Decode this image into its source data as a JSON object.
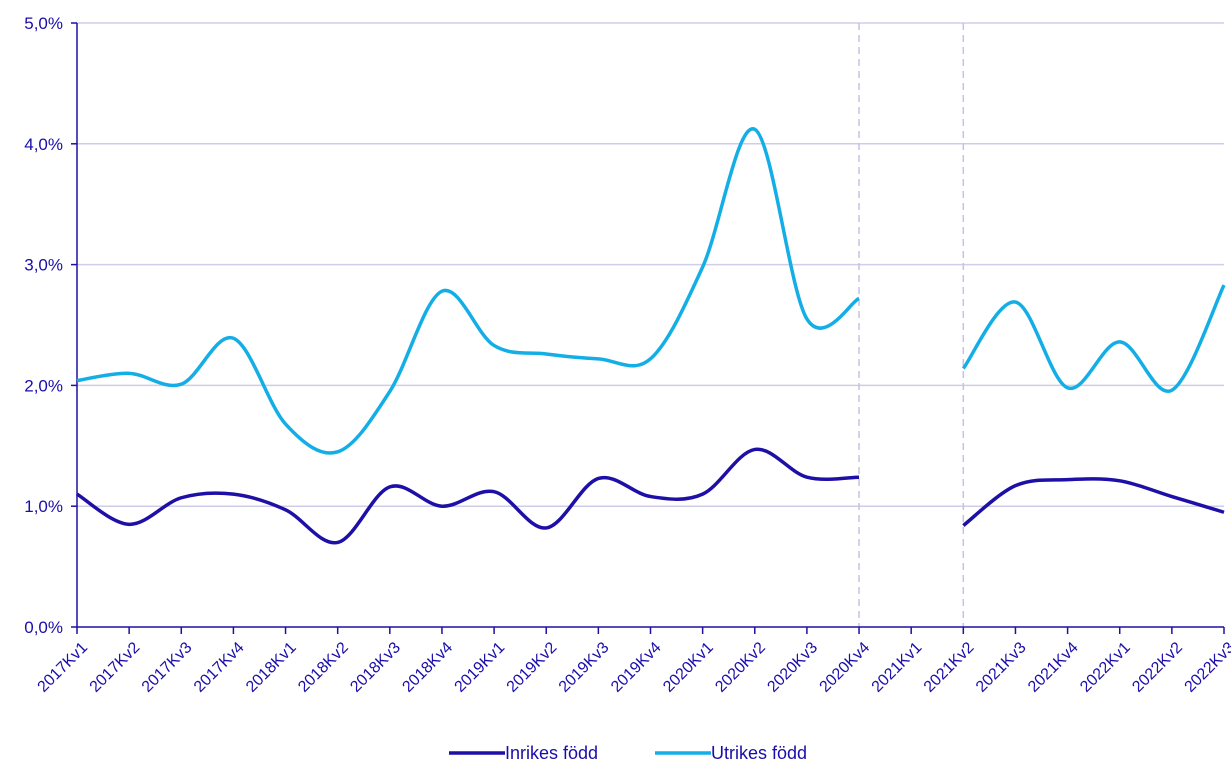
{
  "chart_data": {
    "type": "line",
    "categories": [
      "2017Kv1",
      "2017Kv2",
      "2017Kv3",
      "2017Kv4",
      "2018Kv1",
      "2018Kv2",
      "2018Kv3",
      "2018Kv4",
      "2019Kv1",
      "2019Kv2",
      "2019Kv3",
      "2019Kv4",
      "2020Kv1",
      "2020Kv2",
      "2020Kv3",
      "2020Kv4",
      "2021Kv1",
      "2021Kv2",
      "2021Kv3",
      "2021Kv4",
      "2022Kv1",
      "2022Kv2",
      "2022Kv3"
    ],
    "y_tick_labels": [
      "0,0%",
      "1,0%",
      "2,0%",
      "3,0%",
      "4,0%",
      "5,0%"
    ],
    "y_ticks": [
      0,
      1,
      2,
      3,
      4,
      5
    ],
    "ylim": [
      0,
      5
    ],
    "grid": true,
    "legend_position": "bottom",
    "separators_after_categories": [
      "2020Kv4",
      "2021Kv2"
    ],
    "series": [
      {
        "name": "Inrikes född",
        "color": "#1e0fa6",
        "values": [
          1.1,
          0.85,
          1.07,
          1.1,
          0.97,
          0.7,
          1.16,
          1.0,
          1.12,
          0.82,
          1.23,
          1.08,
          1.1,
          1.47,
          1.24,
          1.24,
          null,
          0.84,
          1.17,
          1.22,
          1.21,
          1.08,
          0.95
        ]
      },
      {
        "name": "Utrikes född",
        "color": "#14aee6",
        "values": [
          2.04,
          2.1,
          2.01,
          2.39,
          1.68,
          1.45,
          1.95,
          2.78,
          2.33,
          2.26,
          2.22,
          2.22,
          2.98,
          4.12,
          2.55,
          2.72,
          null,
          2.14,
          2.69,
          1.98,
          2.36,
          1.96,
          2.83
        ]
      }
    ]
  }
}
